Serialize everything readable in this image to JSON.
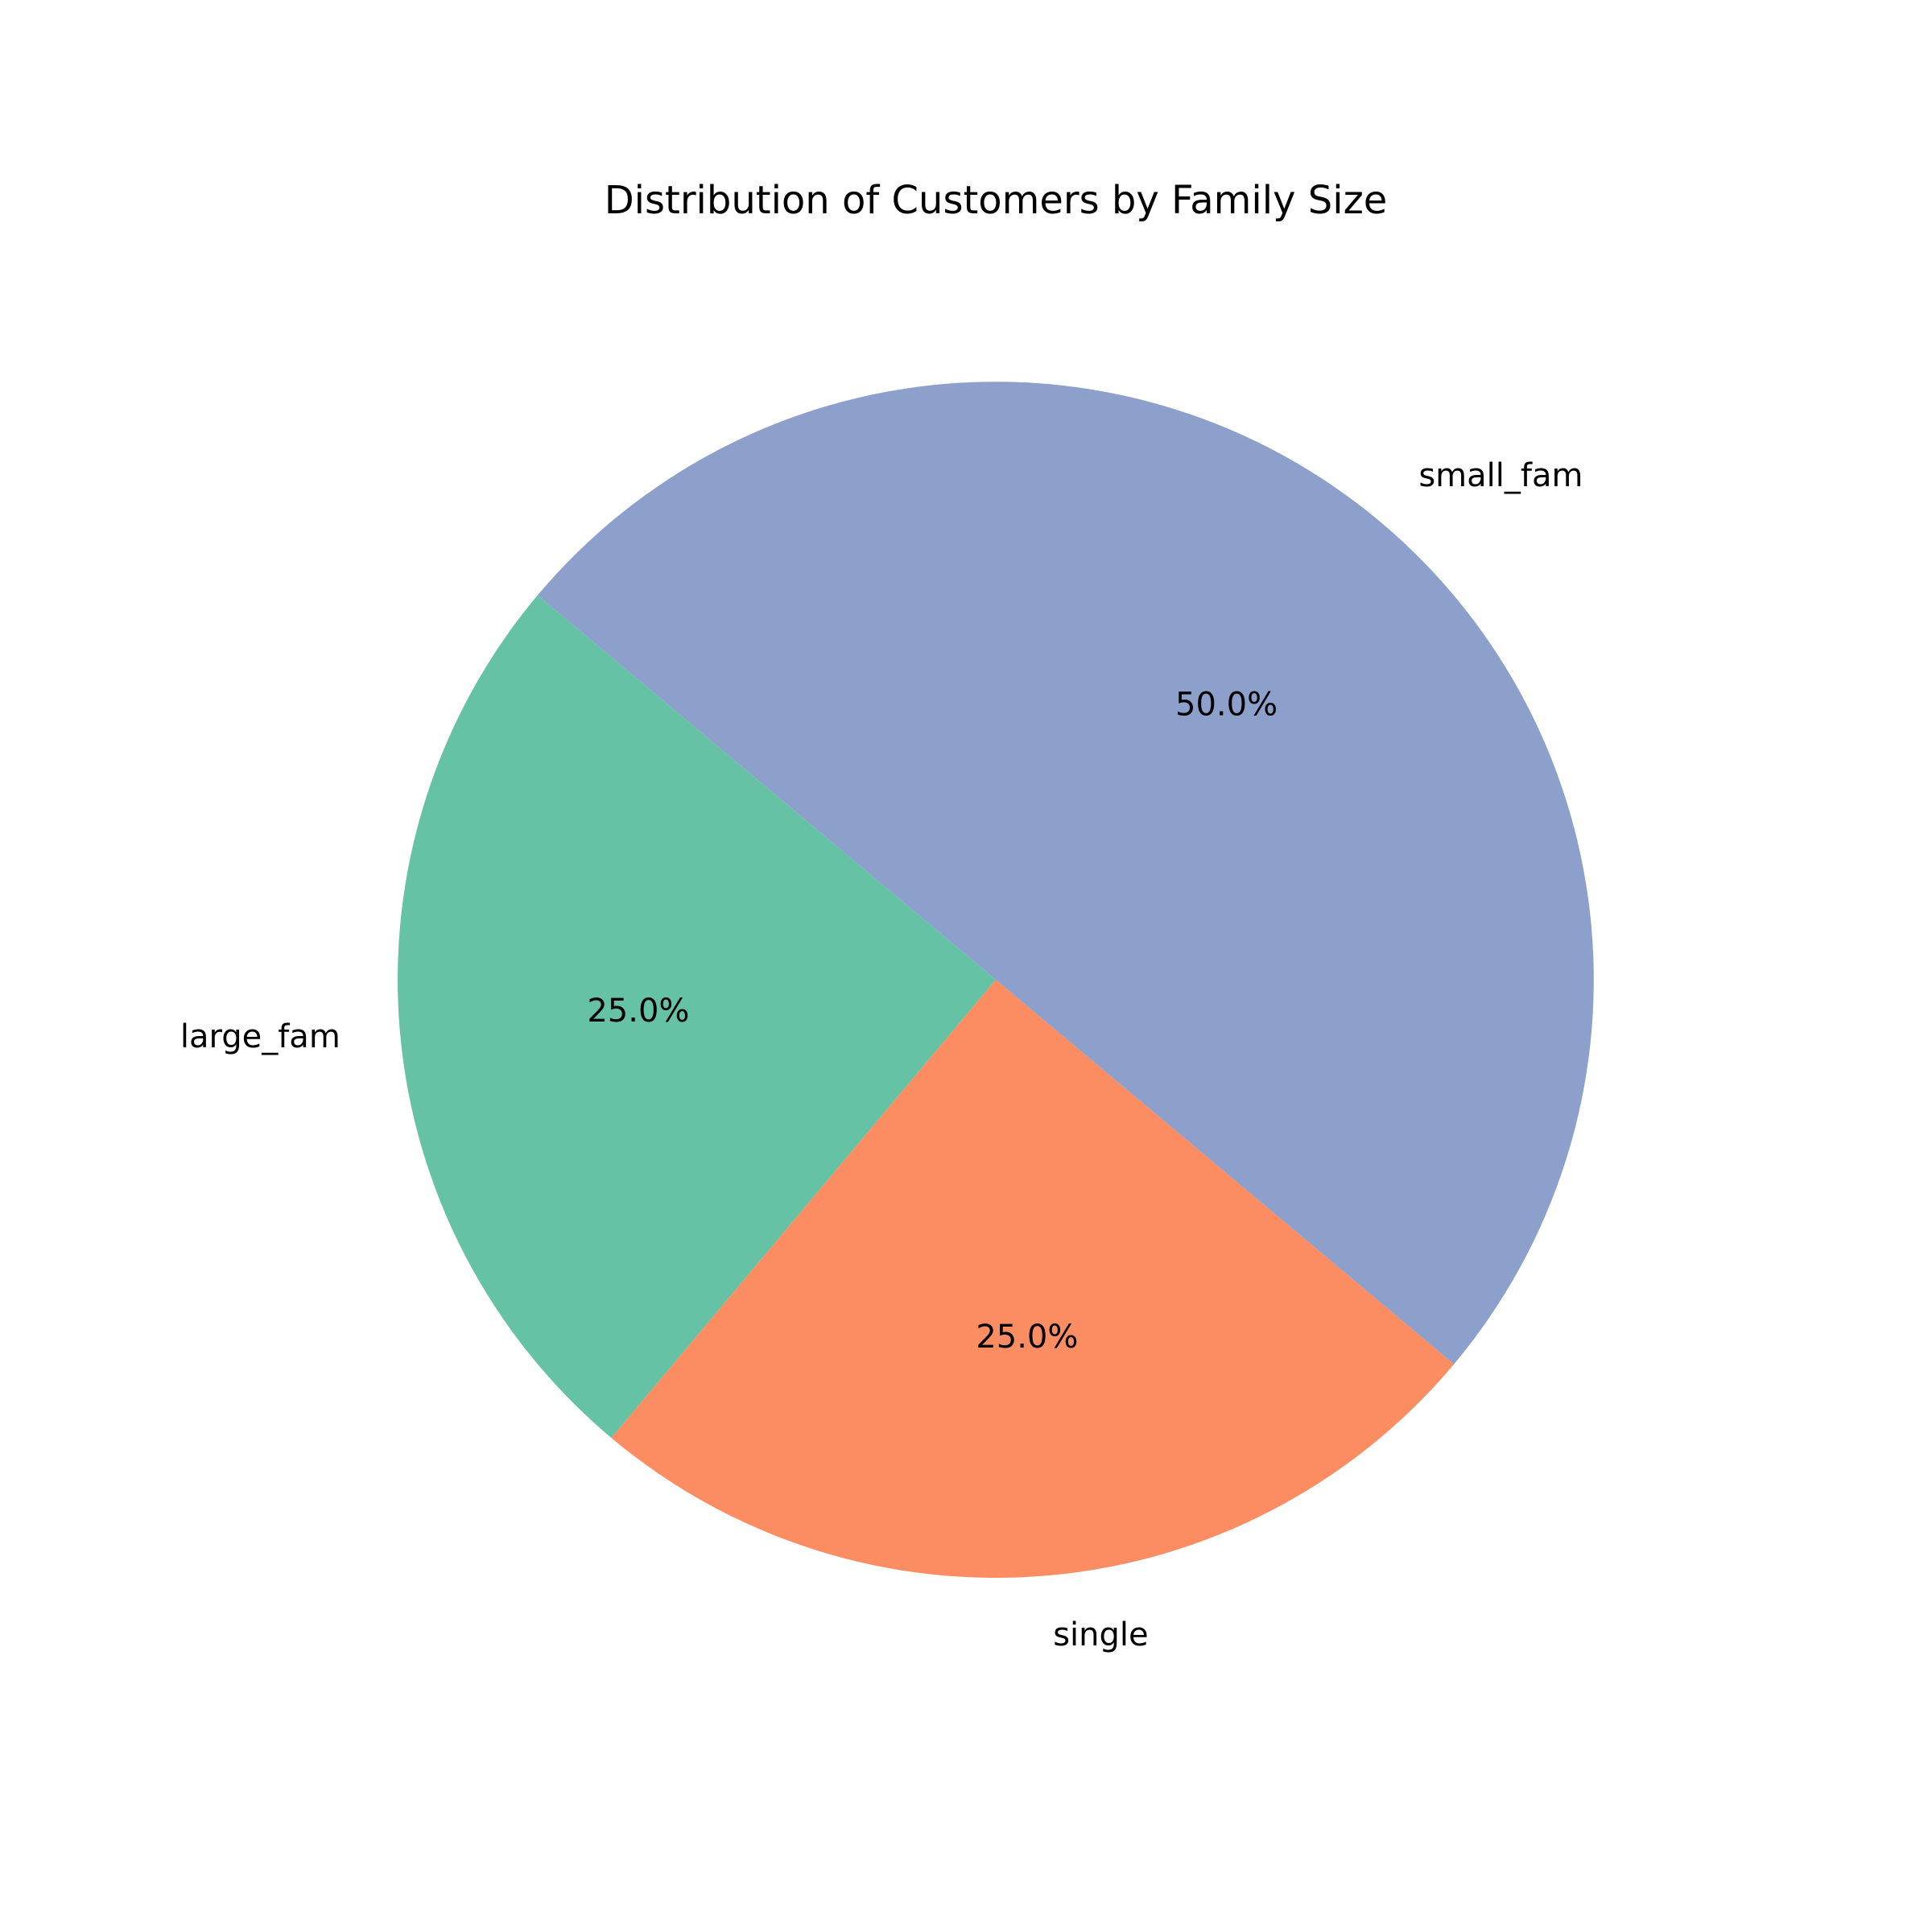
{
  "chart_data": {
    "type": "pie",
    "title": "Distribution of Customers by Family Size",
    "slices": [
      {
        "label": "large_fam",
        "value": 25.0,
        "pct_label": "25.0%",
        "color": "#66c2a5"
      },
      {
        "label": "single",
        "value": 25.0,
        "pct_label": "25.0%",
        "color": "#fc8d62"
      },
      {
        "label": "small_fam",
        "value": 50.0,
        "pct_label": "50.0%",
        "color": "#8da0cb"
      }
    ],
    "start_angle_deg": 140,
    "direction": "counterclockwise",
    "legend": "none"
  }
}
